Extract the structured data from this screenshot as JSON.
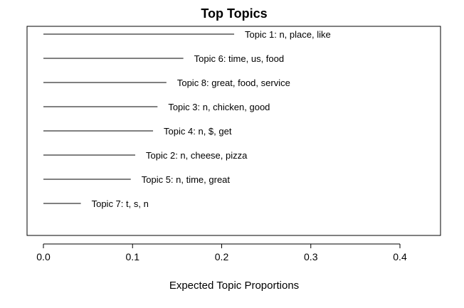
{
  "chart_data": {
    "type": "bar",
    "title": "Top Topics",
    "xlabel": "Expected Topic Proportions",
    "ylabel": "",
    "xlim": [
      0,
      0.4
    ],
    "x_ticks": [
      "0.0",
      "0.1",
      "0.2",
      "0.3",
      "0.4"
    ],
    "orientation": "horizontal",
    "categories": [
      "Topic 1: n, place, like",
      "Topic 6: time, us, food",
      "Topic 8: great, food, service",
      "Topic 3: n, chicken, good",
      "Topic 4: n, $, get",
      "Topic 2: n, cheese, pizza",
      "Topic 5: n, time, great",
      "Topic 7: t, s, n"
    ],
    "values": [
      0.214,
      0.157,
      0.138,
      0.128,
      0.123,
      0.103,
      0.098,
      0.042
    ]
  }
}
